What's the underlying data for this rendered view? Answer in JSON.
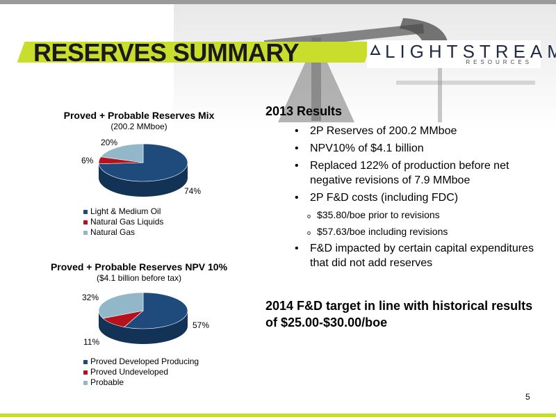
{
  "header": {
    "title": "RESERVES SUMMARY",
    "logo_main": "LIGHTSTREAM",
    "logo_sub": "RESOURCES"
  },
  "colors": {
    "accent": "#c9dd2c",
    "navy": "#1e4a7c",
    "red": "#b5121b",
    "light_blue": "#92b7c9"
  },
  "chart_data": [
    {
      "type": "pie",
      "title": "Proved + Probable Reserves Mix",
      "subtitle": "(200.2 MMboe)",
      "categories": [
        "Light & Medium Oil",
        "Natural Gas Liquids",
        "Natural Gas"
      ],
      "values": [
        74,
        6,
        20
      ],
      "labels": [
        "74%",
        "6%",
        "20%"
      ],
      "legend": "bottom-left"
    },
    {
      "type": "pie",
      "title": "Proved + Probable Reserves NPV 10%",
      "subtitle": "($4.1 billion before tax)",
      "categories": [
        "Proved Developed Producing",
        "Proved Undeveloped",
        "Probable"
      ],
      "values": [
        57,
        11,
        32
      ],
      "labels": [
        "57%",
        "11%",
        "32%"
      ],
      "legend": "bottom-left"
    }
  ],
  "results": {
    "heading": "2013 Results",
    "b1": "2P Reserves of 200.2 MMboe",
    "b2": "NPV10% of $4.1 billion",
    "b3": "Replaced 122% of production before net negative revisions of 7.9 MMboe",
    "b4": "2P F&D costs (including FDC)",
    "b4a": "$35.80/boe prior to revisions",
    "b4b": "$57.63/boe including revisions",
    "b5": "F&D impacted by certain capital expenditures that did not add reserves"
  },
  "target": "2014 F&D target in line with historical results of $25.00-$30.00/boe",
  "page_number": "5"
}
